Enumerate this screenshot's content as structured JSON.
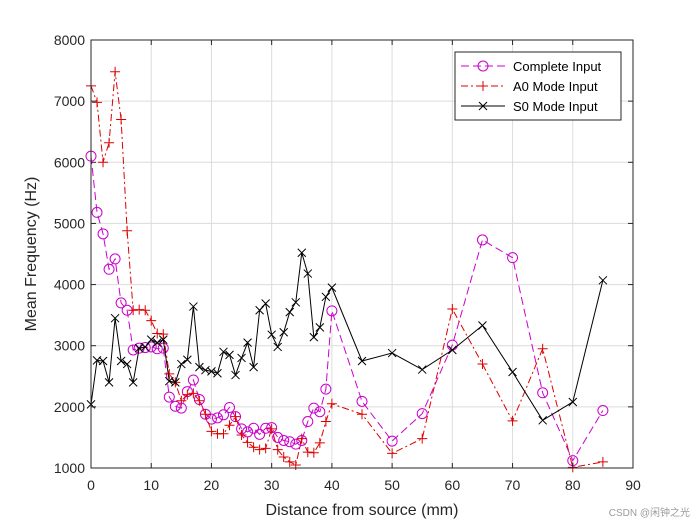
{
  "chart_data": {
    "type": "line",
    "title": "",
    "xlabel": "Distance from source (mm)",
    "ylabel": "Mean Frequency (Hz)",
    "xlim": [
      0,
      90
    ],
    "ylim": [
      1000,
      8000
    ],
    "xticks": [
      0,
      10,
      20,
      30,
      40,
      50,
      60,
      70,
      80,
      90
    ],
    "yticks": [
      1000,
      2000,
      3000,
      4000,
      5000,
      6000,
      7000,
      8000
    ],
    "grid": true,
    "legend_position": "top-right",
    "series": [
      {
        "name": "Complete Input",
        "color": "#cc00cc",
        "linestyle": "dashed",
        "marker": "circle",
        "x": [
          0,
          1,
          2,
          3,
          4,
          5,
          6,
          7,
          8,
          9,
          10,
          11,
          12,
          13,
          14,
          15,
          16,
          17,
          18,
          19,
          20,
          21,
          22,
          23,
          24,
          25,
          26,
          27,
          28,
          29,
          30,
          31,
          32,
          33,
          34,
          35,
          36,
          37,
          38,
          39,
          40,
          45,
          50,
          55,
          60,
          65,
          70,
          75,
          80,
          85
        ],
        "y": [
          6100,
          5180,
          4830,
          4250,
          4420,
          3700,
          3580,
          2930,
          2960,
          2970,
          2980,
          2950,
          2960,
          2160,
          2010,
          1980,
          2250,
          2440,
          2120,
          1880,
          1800,
          1820,
          1870,
          1990,
          1840,
          1640,
          1590,
          1650,
          1550,
          1650,
          1660,
          1500,
          1450,
          1430,
          1390,
          1450,
          1760,
          1980,
          1920,
          2290,
          3570,
          2090,
          1440,
          1890,
          3010,
          4730,
          4440,
          2230,
          1120,
          1940
        ]
      },
      {
        "name": "A0 Mode Input",
        "color": "#dd0000",
        "linestyle": "dashdot",
        "marker": "plus",
        "x": [
          0,
          1,
          2,
          3,
          4,
          5,
          6,
          7,
          8,
          9,
          10,
          11,
          12,
          13,
          14,
          15,
          16,
          17,
          18,
          19,
          20,
          21,
          22,
          23,
          24,
          25,
          26,
          27,
          28,
          29,
          30,
          31,
          32,
          33,
          34,
          35,
          36,
          37,
          38,
          39,
          40,
          45,
          50,
          55,
          60,
          65,
          70,
          75,
          80,
          85
        ],
        "y": [
          7250,
          6980,
          6000,
          6320,
          7480,
          6700,
          4880,
          3580,
          3590,
          3580,
          3410,
          3200,
          3190,
          2540,
          2400,
          2100,
          2200,
          2220,
          2100,
          1880,
          1600,
          1560,
          1560,
          1700,
          1840,
          1540,
          1420,
          1340,
          1300,
          1320,
          1640,
          1300,
          1180,
          1100,
          1050,
          1480,
          1260,
          1250,
          1410,
          1760,
          2050,
          1880,
          1240,
          1480,
          3600,
          2700,
          1770,
          2950,
          1010,
          1100
        ]
      },
      {
        "name": "S0 Mode Input",
        "color": "#000000",
        "linestyle": "solid",
        "marker": "x",
        "x": [
          0,
          1,
          2,
          3,
          4,
          5,
          6,
          7,
          8,
          9,
          10,
          11,
          12,
          13,
          14,
          15,
          16,
          17,
          18,
          19,
          20,
          21,
          22,
          23,
          24,
          25,
          26,
          27,
          28,
          29,
          30,
          31,
          32,
          33,
          34,
          35,
          36,
          37,
          38,
          39,
          40,
          45,
          50,
          55,
          60,
          65,
          70,
          75,
          80,
          85
        ],
        "y": [
          2040,
          2760,
          2750,
          2400,
          3450,
          2750,
          2700,
          2400,
          2960,
          2980,
          3100,
          3050,
          3100,
          2420,
          2400,
          2700,
          2770,
          3640,
          2650,
          2600,
          2580,
          2550,
          2900,
          2850,
          2520,
          2800,
          3050,
          2650,
          3580,
          3690,
          3180,
          2980,
          3220,
          3550,
          3710,
          4520,
          4180,
          3140,
          3300,
          3800,
          3950,
          2750,
          2880,
          2610,
          2930,
          3330,
          2570,
          1780,
          2080,
          4070
        ]
      }
    ]
  },
  "watermark": "CSDN @闲钟之光"
}
